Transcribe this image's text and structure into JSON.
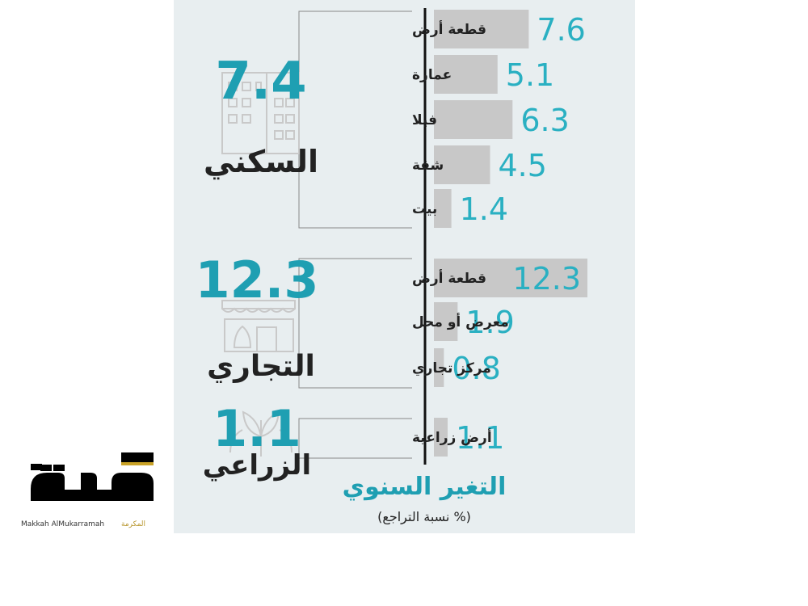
{
  "chart_data": {
    "type": "bar",
    "groups": [
      {
        "name": "السكني",
        "total": "7.4",
        "categories": [
          "قطعة أرض",
          "عمارة",
          "فيلا",
          "شقة",
          "بيت"
        ],
        "values": [
          7.6,
          5.1,
          6.3,
          4.5,
          1.4
        ]
      },
      {
        "name": "التجاري",
        "total": "12.3",
        "categories": [
          "قطعة أرض",
          "معرض أو محل",
          "مركز تجاري"
        ],
        "values": [
          12.3,
          1.9,
          0.8
        ]
      },
      {
        "name": "الزراعي",
        "total": "1.1",
        "categories": [
          "أرض زراعية"
        ],
        "values": [
          1.1
        ]
      }
    ],
    "title": "التغير السنوي",
    "subtitle": "(نسبة التراجع %)",
    "value_labels_color": "#2ab0c2",
    "bar_color": "#c8c8c8",
    "accent_color": "#1f9fb2"
  },
  "logo": {
    "arabic_wordmark": "مكة",
    "latin_caption": "Makkah AlMukarramah",
    "arabic_caption": "المكرمة"
  }
}
